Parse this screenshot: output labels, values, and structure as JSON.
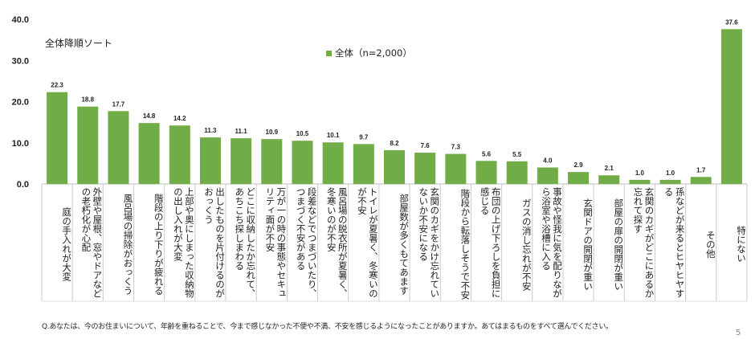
{
  "chart_data": {
    "type": "bar",
    "subtitle": "全体降順ソート",
    "legend": "全体（n=2,000）",
    "legend_position": "top-center",
    "color": "#70AD47",
    "ylim": [
      0,
      40
    ],
    "yticks": [
      "0.0",
      "10.0",
      "20.0",
      "30.0",
      "40.0"
    ],
    "grid": false,
    "categories": [
      "庭の手入れが大変",
      "外壁や屋根、窓やドアなどの老朽化が心配",
      "風呂場の掃除がおっくう",
      "階段の上り下りが疲れる",
      "上部や奥にしまった収納物の出し入れが大変",
      "出したものを片付けるのがおっくう",
      "どこに収納したか忘れて、あちこち探しまわる",
      "万が一の時の事態やセキュリティ面が不安",
      "段差などでつまづいたり、つまづく不安がある",
      "風呂場の脱衣所が夏暑く、冬寒いのが不安",
      "トイレが夏暑く、冬寒いのが不安",
      "部屋数が多くもてあます",
      "玄関のカギをかけ忘れていないか不安になる",
      "階段から転落しそうで不安",
      "布団の上げ下ろしを負担に感じる",
      "ガスの消し忘れが不安",
      "事故や怪我に気を配りながら浴室や浴槽に入る",
      "玄関ドアの開閉が重い",
      "部屋の扉の開閉が重い",
      "玄関のカギがどこにあるか忘れて探す",
      "孫などが来るとヒヤヒヤする",
      "その他",
      "特にない"
    ],
    "values": [
      22.3,
      18.8,
      17.7,
      14.8,
      14.2,
      11.3,
      11.1,
      10.9,
      10.5,
      10.1,
      9.7,
      8.2,
      7.6,
      7.3,
      5.6,
      5.5,
      4.0,
      2.9,
      2.1,
      1.0,
      1.0,
      1.7,
      37.6
    ]
  },
  "footnote": "Q.あなたは、今のお住まいについて、年齢を重ねることで、今まで感じなかった不便や不満、不安を感じるようになったことがありますか。あてはまるものをすべて選んでください。",
  "page_number": "5"
}
